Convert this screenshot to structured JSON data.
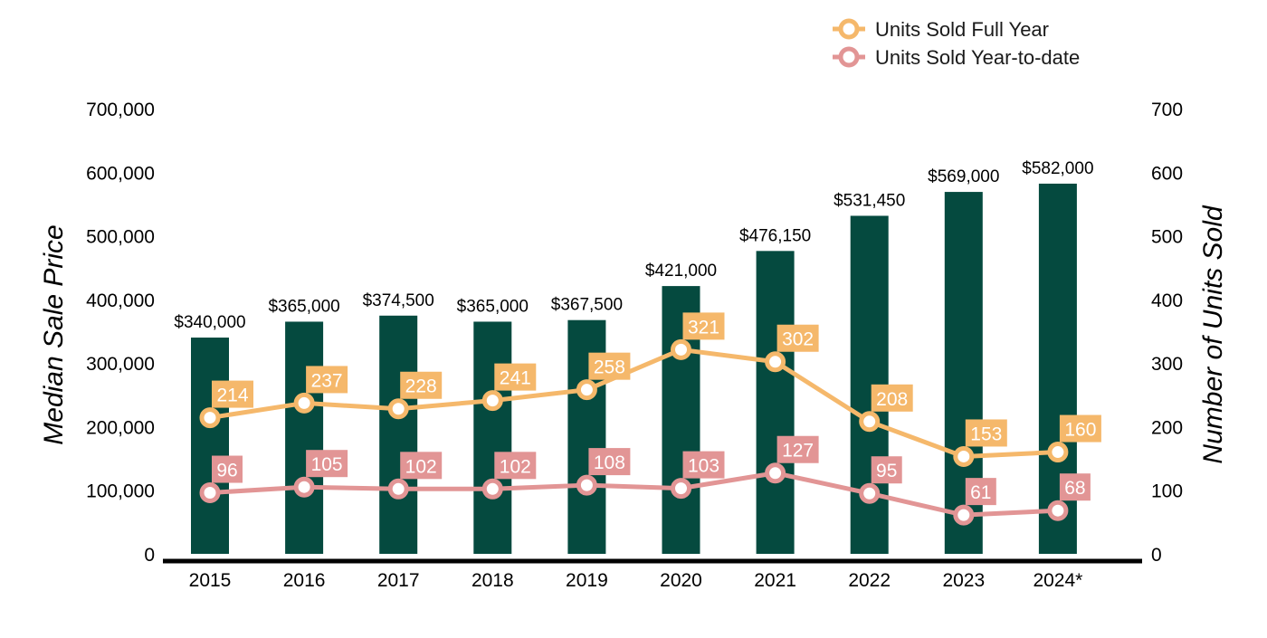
{
  "chart_data": {
    "type": "bar",
    "categories": [
      "2015",
      "2016",
      "2017",
      "2018",
      "2019",
      "2020",
      "2021",
      "2022",
      "2023",
      "2024*"
    ],
    "bars": {
      "values": [
        340000,
        365000,
        374500,
        365000,
        367500,
        421000,
        476150,
        531450,
        569000,
        582000
      ],
      "labels": [
        "$340,000",
        "$365,000",
        "$374,500",
        "$365,000",
        "$367,500",
        "$421,000",
        "$476,150",
        "$531,450",
        "$569,000",
        "$582,000"
      ],
      "color": "#054a3f"
    },
    "series": [
      {
        "name": "Units Sold Full Year",
        "values": [
          214,
          237,
          228,
          241,
          258,
          321,
          302,
          208,
          153,
          160
        ],
        "color": "#f5b86b"
      },
      {
        "name": "Units Sold Year-to-date",
        "values": [
          96,
          105,
          102,
          102,
          108,
          103,
          127,
          95,
          61,
          68
        ],
        "color": "#e29595"
      }
    ],
    "left_axis": {
      "label": "Median Sale Price",
      "range": [
        0,
        700000
      ],
      "ticks": [
        "0",
        "100,000",
        "200,000",
        "300,000",
        "400,000",
        "500,000",
        "600,000",
        "700,000"
      ]
    },
    "right_axis": {
      "label": "Number of Units Sold",
      "range": [
        0,
        700
      ],
      "ticks": [
        "0",
        "100",
        "200",
        "300",
        "400",
        "500",
        "600",
        "700"
      ]
    },
    "grid": false,
    "legend_position": "top-right"
  }
}
